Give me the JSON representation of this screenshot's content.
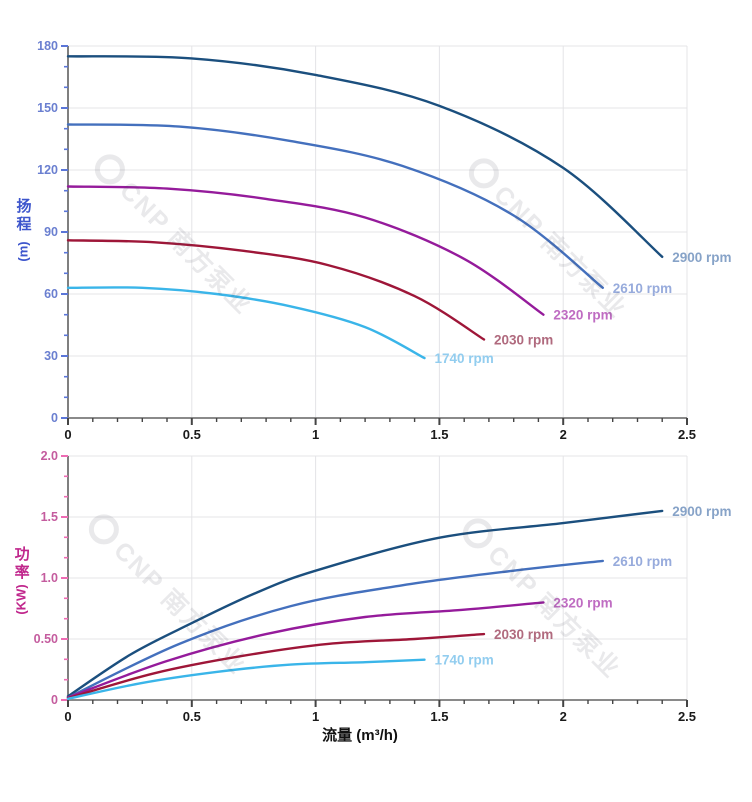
{
  "watermark": {
    "logo_icon": "cnp-ring-logo",
    "text": "CNP 南方泵业"
  },
  "grid_color": "#e4e4e7",
  "x_axis_style": {
    "label_color": "#1a1a1a",
    "tick_color": "#444444",
    "line_color": "#8a8a8a"
  },
  "chart_data": [
    {
      "type": "line",
      "title": "",
      "ylabel": "扬程",
      "yunit": "(m)",
      "xlabel": "流量 (m³/h)",
      "xlim": [
        0,
        2.5
      ],
      "ylim": [
        0,
        180
      ],
      "grid": true,
      "legend_position": "curve-end-labels",
      "x_tick_labels": [
        "0",
        "0.5",
        "1",
        "1.5",
        "2",
        "2.5"
      ],
      "x_major_ticks": [
        0,
        0.5,
        1,
        1.5,
        2,
        2.5
      ],
      "x_minor_divisions": 5,
      "y_tick_labels": [
        "0",
        "30",
        "60",
        "90",
        "120",
        "150",
        "180"
      ],
      "y_major_ticks": [
        0,
        30,
        60,
        90,
        120,
        150,
        180
      ],
      "y_minor_divisions": 3,
      "axis_color": {
        "labels": "#6a7fd0",
        "ticks": "#5b76d8",
        "line": "#555555",
        "title": "#3d55cc"
      },
      "series": [
        {
          "name": "2900 rpm",
          "color": "#1b4f7e",
          "label_color": "#87a3c8",
          "points": [
            [
              0,
              175
            ],
            [
              0.5,
              174
            ],
            [
              1.0,
              166
            ],
            [
              1.5,
              151
            ],
            [
              2.0,
              121
            ],
            [
              2.4,
              78
            ]
          ]
        },
        {
          "name": "2610 rpm",
          "color": "#4470bd",
          "label_color": "#97abdc",
          "points": [
            [
              0,
              142
            ],
            [
              0.45,
              141
            ],
            [
              0.9,
              134
            ],
            [
              1.35,
              122
            ],
            [
              1.8,
              98
            ],
            [
              2.16,
              63
            ]
          ]
        },
        {
          "name": "2320 rpm",
          "color": "#951b9b",
          "label_color": "#bf6cc2",
          "points": [
            [
              0,
              112
            ],
            [
              0.4,
              111
            ],
            [
              0.8,
              106
            ],
            [
              1.2,
              97
            ],
            [
              1.6,
              77
            ],
            [
              1.92,
              50
            ]
          ]
        },
        {
          "name": "2030 rpm",
          "color": "#9e1638",
          "label_color": "#b06a7e",
          "points": [
            [
              0,
              86
            ],
            [
              0.35,
              85
            ],
            [
              0.7,
              81
            ],
            [
              1.05,
              74
            ],
            [
              1.4,
              59
            ],
            [
              1.68,
              38
            ]
          ]
        },
        {
          "name": "1740 rpm",
          "color": "#3ab5e9",
          "label_color": "#92cdef",
          "points": [
            [
              0,
              63
            ],
            [
              0.3,
              63
            ],
            [
              0.6,
              60
            ],
            [
              0.9,
              54
            ],
            [
              1.2,
              44
            ],
            [
              1.44,
              29
            ]
          ]
        }
      ]
    },
    {
      "type": "line",
      "title": "",
      "ylabel": "功率",
      "yunit": "(KW)",
      "xlabel": "流量 (m³/h)",
      "xlim": [
        0,
        2.5
      ],
      "ylim": [
        0,
        2.0
      ],
      "grid": true,
      "legend_position": "curve-end-labels",
      "x_tick_labels": [
        "0",
        "0.5",
        "1",
        "1.5",
        "2",
        "2.5"
      ],
      "x_major_ticks": [
        0,
        0.5,
        1,
        1.5,
        2,
        2.5
      ],
      "x_minor_divisions": 5,
      "y_tick_labels": [
        "0",
        "0.50",
        "1.0",
        "1.5",
        "2.0"
      ],
      "y_major_ticks": [
        0,
        0.5,
        1.0,
        1.5,
        2.0
      ],
      "y_minor_divisions": 3,
      "axis_color": {
        "labels": "#c45c9e",
        "ticks": "#ee6cb4",
        "line": "#555555",
        "title": "#c0268c"
      },
      "series": [
        {
          "name": "2900 rpm",
          "color": "#1b4f7e",
          "label_color": "#87a3c8",
          "points": [
            [
              0,
              0.03
            ],
            [
              0.25,
              0.37
            ],
            [
              0.5,
              0.63
            ],
            [
              0.75,
              0.87
            ],
            [
              1.0,
              1.06
            ],
            [
              1.5,
              1.33
            ],
            [
              2.0,
              1.45
            ],
            [
              2.4,
              1.55
            ]
          ]
        },
        {
          "name": "2610 rpm",
          "color": "#4470bd",
          "label_color": "#97abdc",
          "points": [
            [
              0,
              0.02
            ],
            [
              0.45,
              0.46
            ],
            [
              0.9,
              0.77
            ],
            [
              1.35,
              0.94
            ],
            [
              1.8,
              1.06
            ],
            [
              2.16,
              1.14
            ]
          ]
        },
        {
          "name": "2320 rpm",
          "color": "#951b9b",
          "label_color": "#bf6cc2",
          "points": [
            [
              0,
              0.02
            ],
            [
              0.4,
              0.32
            ],
            [
              0.8,
              0.54
            ],
            [
              1.2,
              0.68
            ],
            [
              1.6,
              0.74
            ],
            [
              1.92,
              0.8
            ]
          ]
        },
        {
          "name": "2030 rpm",
          "color": "#9e1638",
          "label_color": "#b06a7e",
          "points": [
            [
              0,
              0.015
            ],
            [
              0.35,
              0.22
            ],
            [
              0.7,
              0.36
            ],
            [
              1.05,
              0.46
            ],
            [
              1.4,
              0.5
            ],
            [
              1.68,
              0.54
            ]
          ]
        },
        {
          "name": "1740 rpm",
          "color": "#3ab5e9",
          "label_color": "#92cdef",
          "points": [
            [
              0,
              0.01
            ],
            [
              0.3,
              0.14
            ],
            [
              0.6,
              0.23
            ],
            [
              0.9,
              0.29
            ],
            [
              1.2,
              0.31
            ],
            [
              1.44,
              0.33
            ]
          ]
        }
      ]
    }
  ]
}
